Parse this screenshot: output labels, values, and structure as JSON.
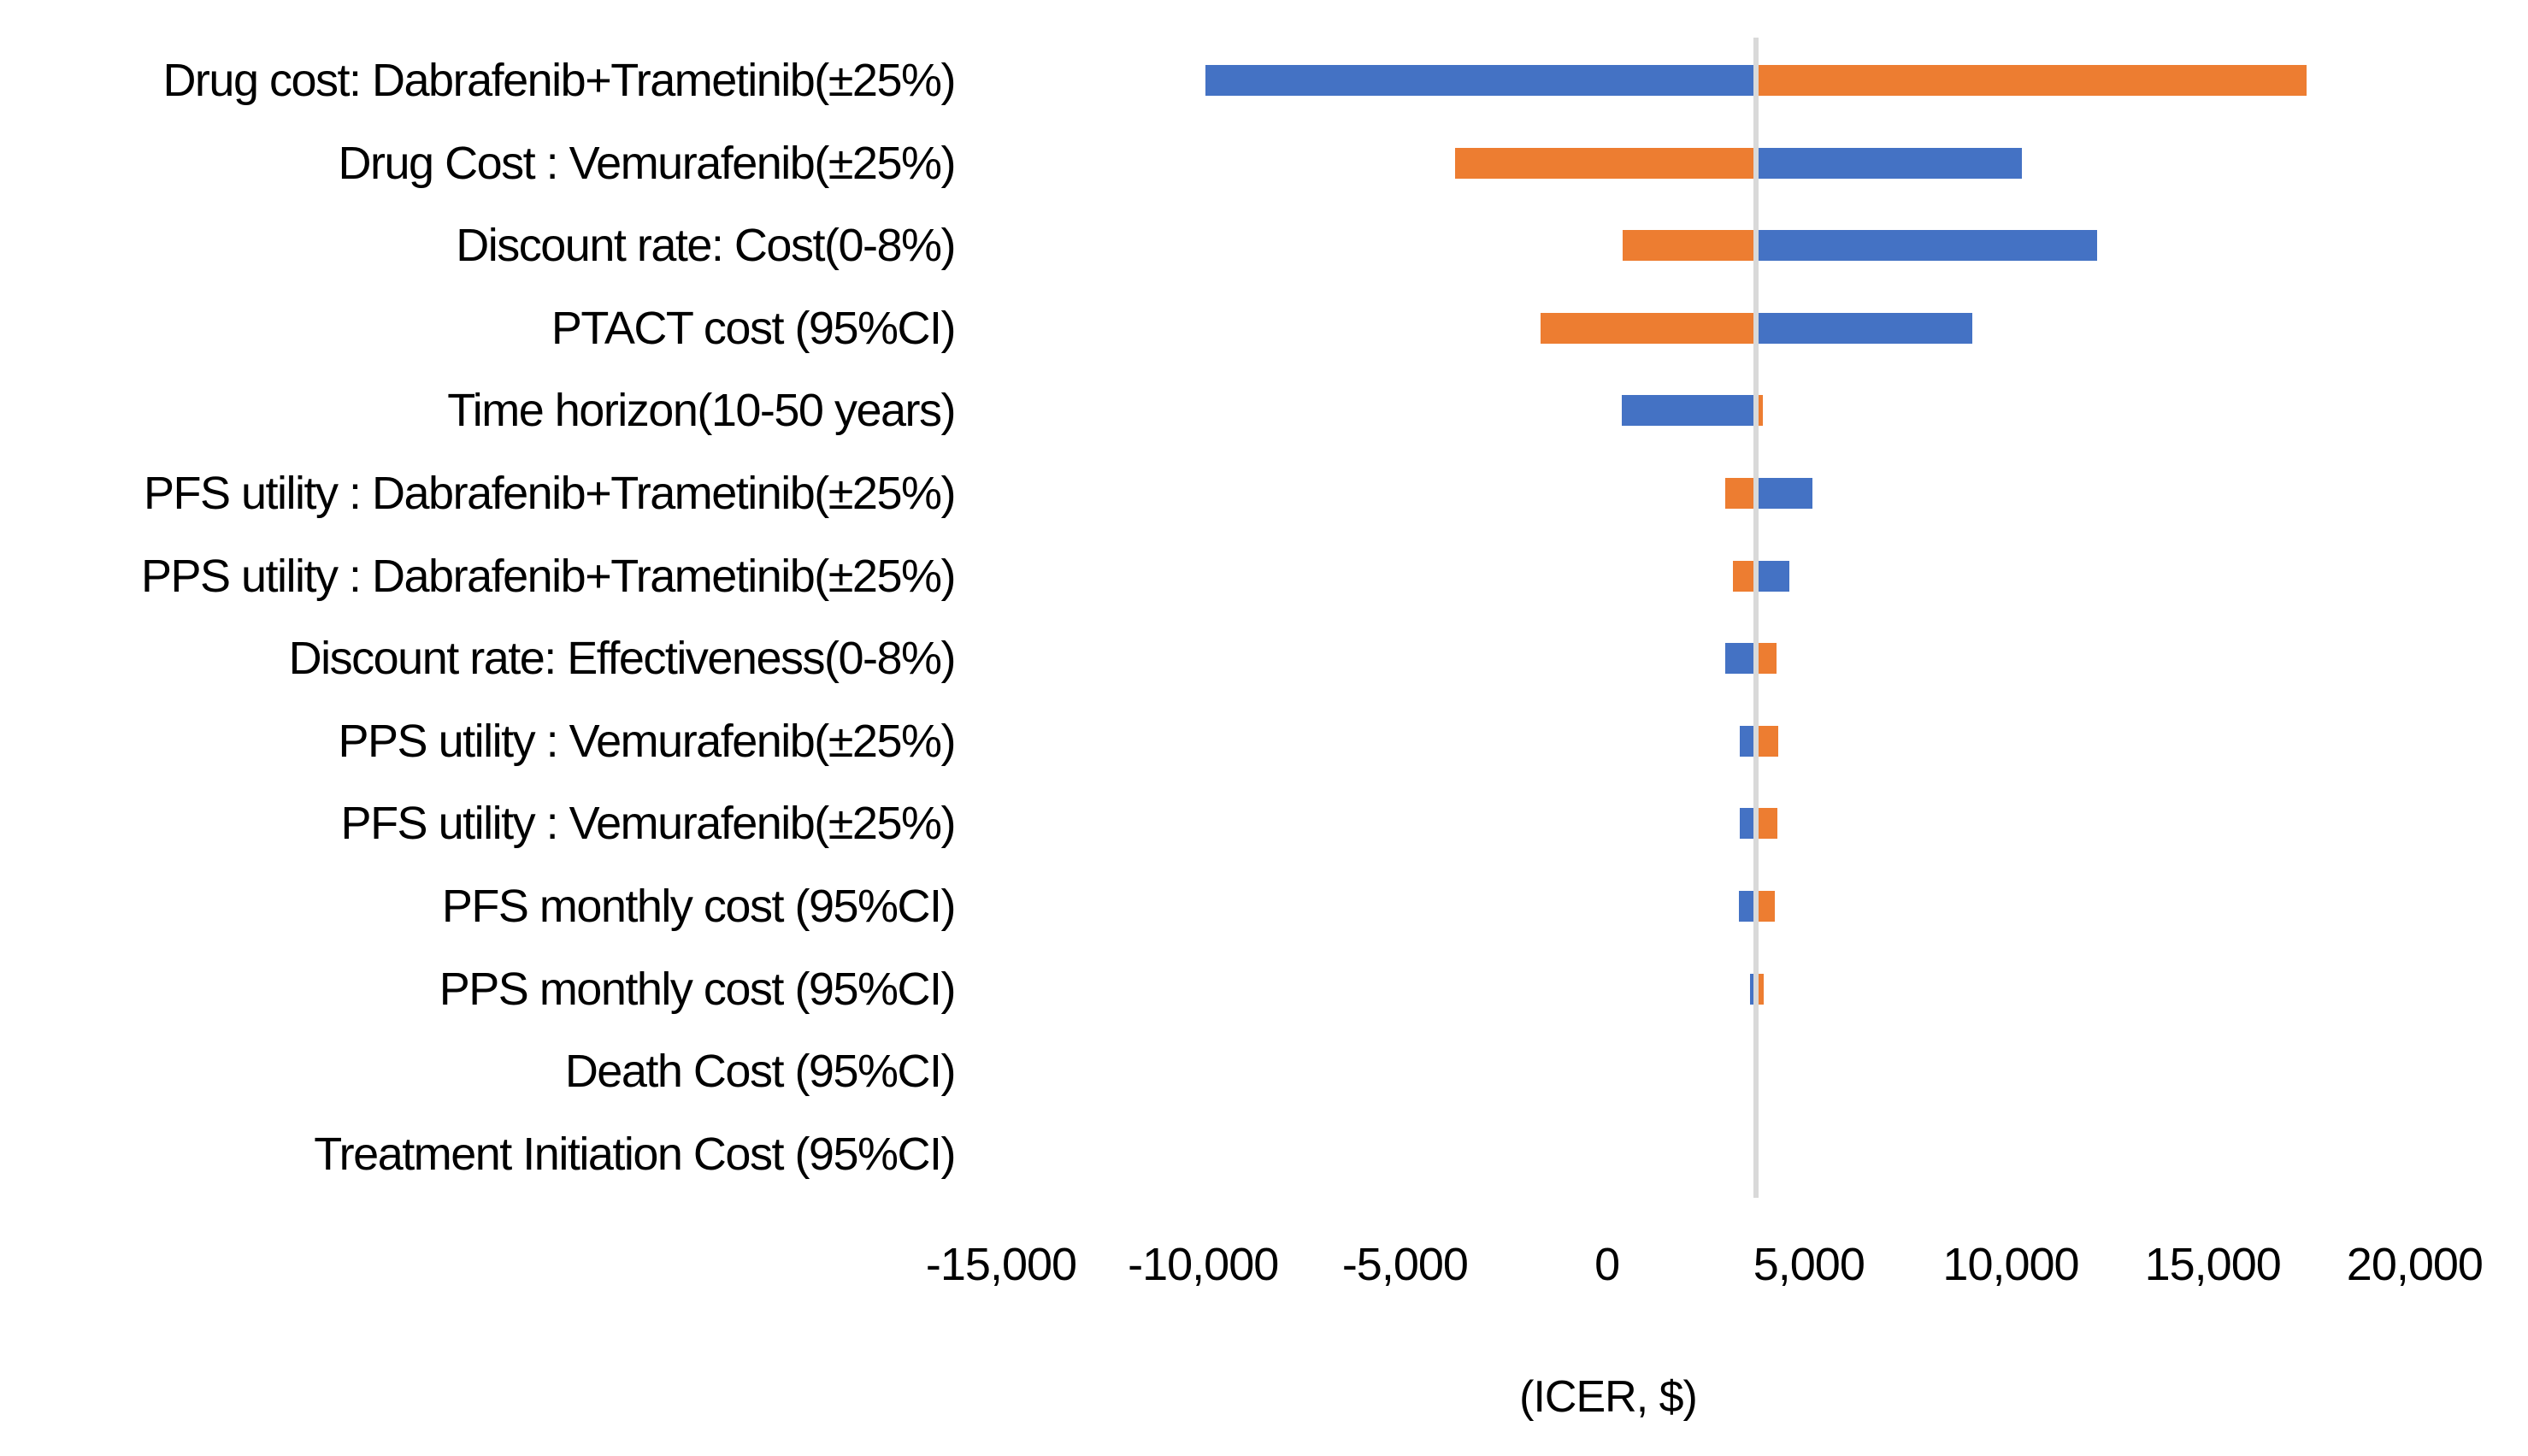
{
  "chart_data": {
    "type": "bar",
    "variant": "tornado",
    "title": "(ICER, $)",
    "x_axis": {
      "min": -15000,
      "max": 20000,
      "tick_step": 5000,
      "ticks": [
        {
          "value": -15000,
          "label": "-15,000"
        },
        {
          "value": -10000,
          "label": "-10,000"
        },
        {
          "value": -5000,
          "label": "-5,000"
        },
        {
          "value": 0,
          "label": "0"
        },
        {
          "value": 5000,
          "label": "5,000"
        },
        {
          "value": 10000,
          "label": "10,000"
        },
        {
          "value": 15000,
          "label": "15,000"
        },
        {
          "value": 20000,
          "label": "20,000"
        }
      ]
    },
    "base_icer": 3700,
    "colors": {
      "blue": "#4472C4",
      "orange": "#ED7D31",
      "baseline": "#D9D9D9"
    },
    "grid": "baseline-only",
    "legend": "none",
    "rows": [
      {
        "label": "Drug cost: Dabrafenib+Trametinib(±25%)",
        "left": {
          "color": "blue",
          "value": -9940
        },
        "right": {
          "color": "orange",
          "value": 17330
        }
      },
      {
        "label": "Drug Cost : Vemurafenib(±25%)",
        "left": {
          "color": "orange",
          "value": -3770
        },
        "right": {
          "color": "blue",
          "value": 10280
        }
      },
      {
        "label": "Discount rate: Cost(0-8%)",
        "left": {
          "color": "orange",
          "value": 380
        },
        "right": {
          "color": "blue",
          "value": 12140
        }
      },
      {
        "label": "PTACT cost (95%CI)",
        "left": {
          "color": "orange",
          "value": -1650
        },
        "right": {
          "color": "blue",
          "value": 9050
        }
      },
      {
        "label": "Time horizon(10-50 years)",
        "left": {
          "color": "blue",
          "value": 360
        },
        "right": {
          "color": "orange",
          "value": 3860
        }
      },
      {
        "label": "PFS utility : Dabrafenib+Trametinib(±25%)",
        "left": {
          "color": "orange",
          "value": 2920
        },
        "right": {
          "color": "blue",
          "value": 5080
        }
      },
      {
        "label": "PPS utility : Dabrafenib+Trametinib(±25%)",
        "left": {
          "color": "orange",
          "value": 3130
        },
        "right": {
          "color": "blue",
          "value": 4510
        }
      },
      {
        "label": "Discount rate: Effectiveness(0-8%)",
        "left": {
          "color": "blue",
          "value": 2920
        },
        "right": {
          "color": "orange",
          "value": 4190
        }
      },
      {
        "label": "PPS utility : Vemurafenib(±25%)",
        "left": {
          "color": "blue",
          "value": 3290
        },
        "right": {
          "color": "orange",
          "value": 4250
        }
      },
      {
        "label": "PFS utility : Vemurafenib(±25%)",
        "left": {
          "color": "blue",
          "value": 3300
        },
        "right": {
          "color": "orange",
          "value": 4230
        }
      },
      {
        "label": "PFS monthly cost (95%CI)",
        "left": {
          "color": "blue",
          "value": 3270
        },
        "right": {
          "color": "orange",
          "value": 4150
        }
      },
      {
        "label": "PPS monthly cost (95%CI)",
        "left": {
          "color": "blue",
          "value": 3550
        },
        "right": {
          "color": "orange",
          "value": 3890
        }
      },
      {
        "label": "Death Cost (95%CI)",
        "left": null,
        "right": null
      },
      {
        "label": "Treatment Initiation Cost (95%CI)",
        "left": null,
        "right": null
      }
    ]
  }
}
